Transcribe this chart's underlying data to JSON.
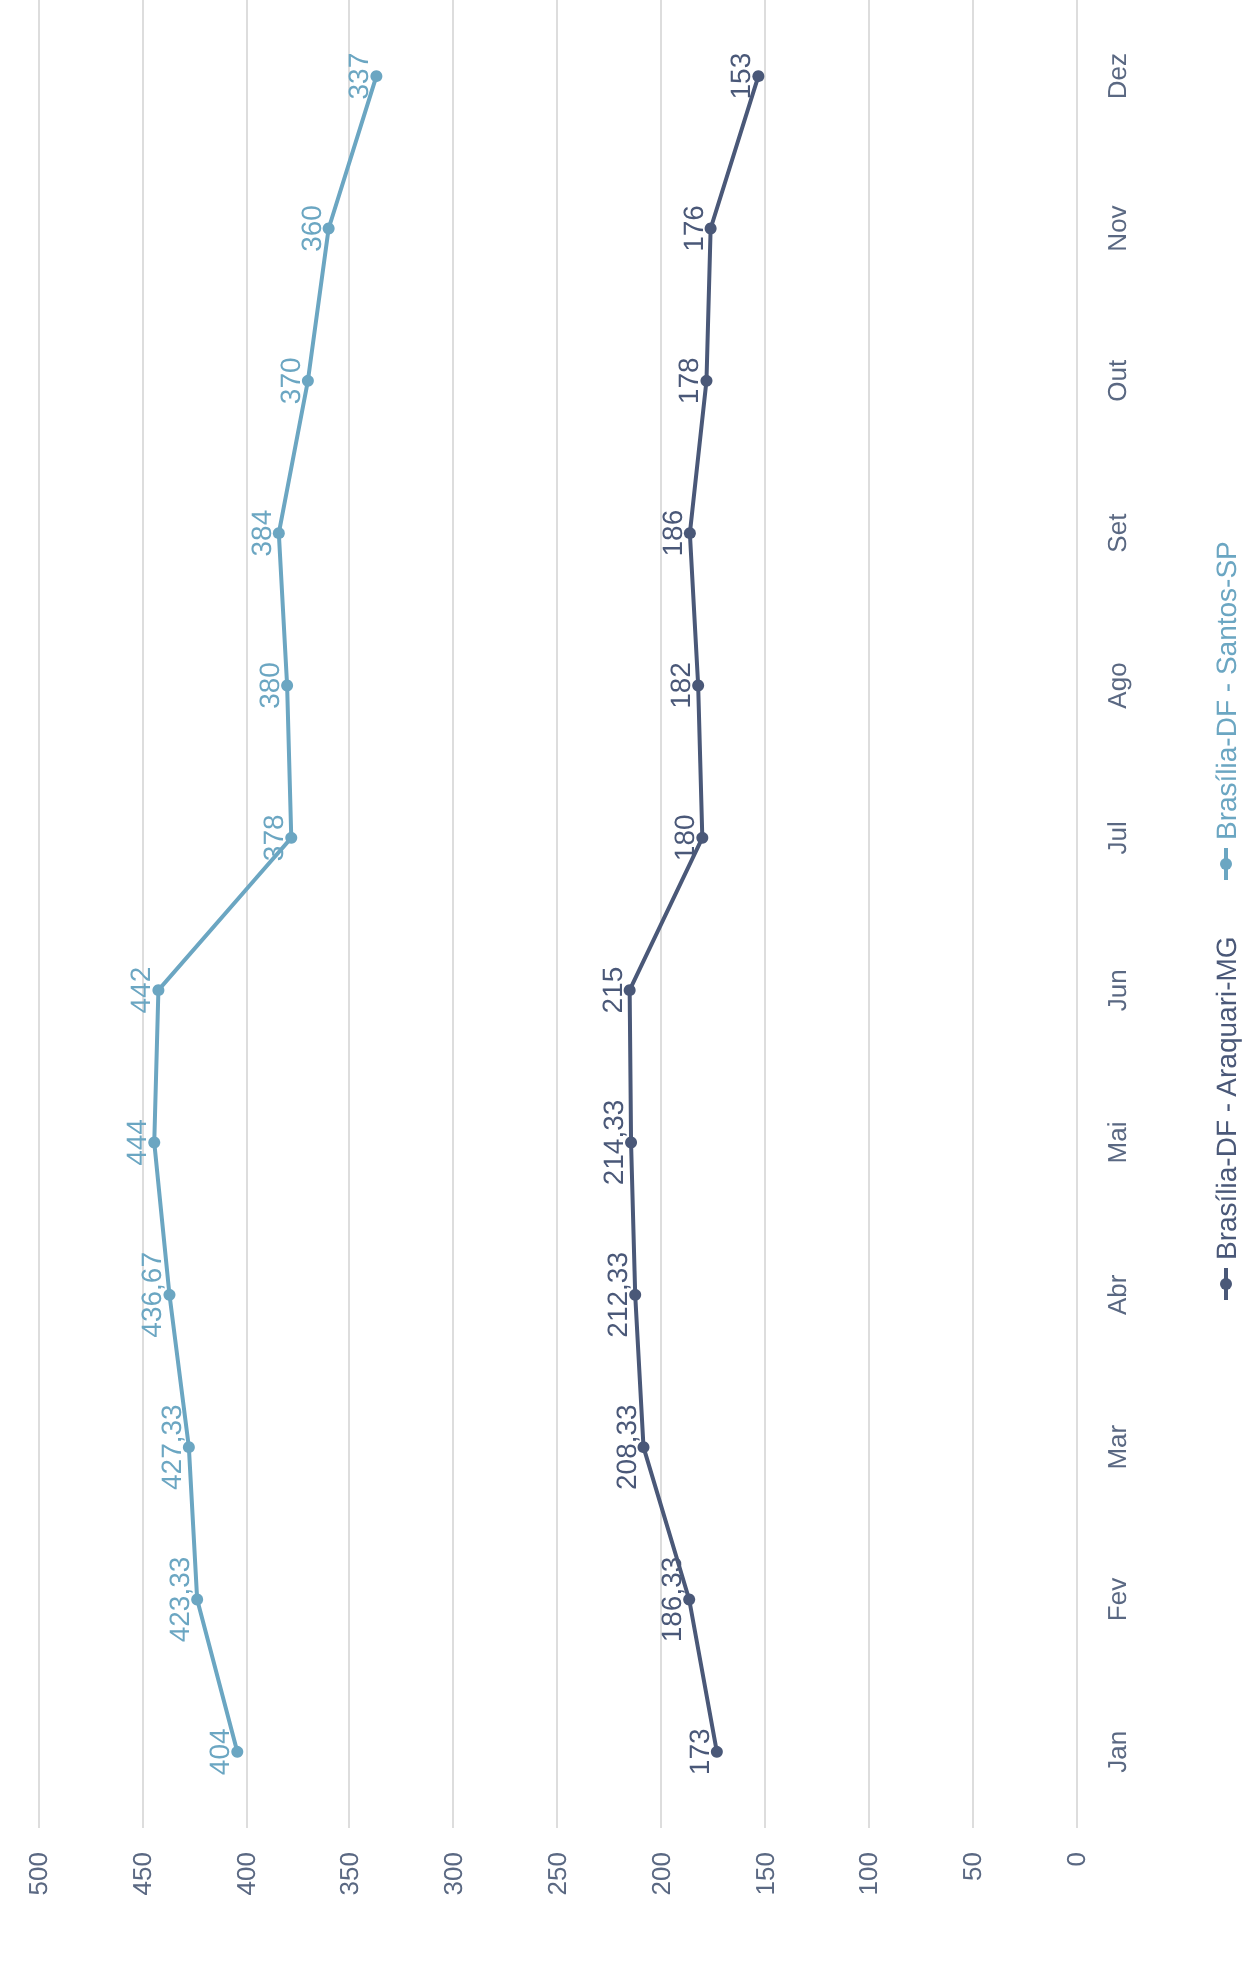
{
  "chart_data": {
    "type": "line",
    "orientation": "horizontal",
    "categories": [
      "Dez",
      "Nov",
      "Out",
      "Set",
      "Ago",
      "Jul",
      "Jun",
      "Mai",
      "Abr",
      "Mar",
      "Fev",
      "Jan"
    ],
    "series": [
      {
        "name": "Brasília-DF - Araquari-MG",
        "color": "#4a5878",
        "values": [
          153,
          176,
          178,
          186,
          182,
          180,
          215,
          214.33,
          212.33,
          208.33,
          186.33,
          173
        ],
        "value_labels": [
          "153",
          "176",
          "178",
          "186",
          "182",
          "180",
          "215",
          "214,33",
          "212,33",
          "208,33",
          "186,33",
          "173"
        ]
      },
      {
        "name": "Brasília-DF - Santos-SP",
        "color": "#6ba6c2",
        "values": [
          337,
          360,
          370,
          384,
          380,
          378,
          442,
          444,
          436.67,
          427.33,
          423.33,
          404
        ],
        "value_labels": [
          "337",
          "360",
          "370",
          "384",
          "380",
          "378",
          "442",
          "444",
          "436,67",
          "427,33",
          "423,33",
          "404"
        ]
      }
    ],
    "xlim": [
      500,
      0
    ],
    "xticks": [
      500,
      450,
      400,
      350,
      300,
      250,
      200,
      150,
      100,
      50,
      0
    ],
    "grid": "x",
    "legend": "right",
    "marker": "circle",
    "line_style": "solid"
  }
}
